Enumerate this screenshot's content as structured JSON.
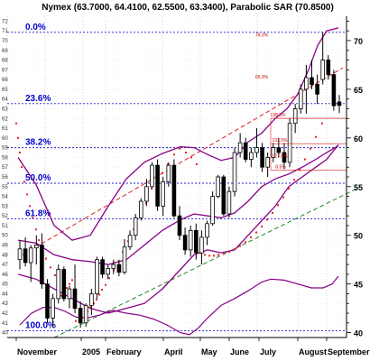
{
  "chart_data": {
    "type": "candlestick",
    "title": "Nymex (63.7000, 64.4100, 62.5500, 63.3400), Parabolic SAR (70.8500)",
    "y_axis": {
      "side": "right",
      "range": [
        39.5,
        72.5
      ],
      "major_ticks": [
        40,
        45,
        50,
        55,
        60,
        65,
        70
      ]
    },
    "x_axis": {
      "labels": [
        "November",
        "2005",
        "February",
        "April",
        "May",
        "June",
        "July",
        "August",
        "September"
      ]
    },
    "fibonacci_levels": [
      {
        "label": "0.0%",
        "price": 70.85
      },
      {
        "label": "23.6%",
        "price": 63.53
      },
      {
        "label": "38.2%",
        "price": 59.0
      },
      {
        "label": "50.0%",
        "price": 55.35
      },
      {
        "label": "61.8%",
        "price": 51.7
      },
      {
        "label": "100.0%",
        "price": 40.2
      }
    ],
    "annotations": [
      "78.3%",
      "65.3%",
      "138.3%",
      "132.5%",
      "127.8%",
      "8.5%"
    ],
    "candles": [
      {
        "o": 47.5,
        "h": 49.5,
        "l": 46.5,
        "c": 48.6
      },
      {
        "o": 48.6,
        "h": 49.8,
        "l": 46.8,
        "c": 47.2
      },
      {
        "o": 47.2,
        "h": 49.0,
        "l": 45.2,
        "c": 48.7
      },
      {
        "o": 48.7,
        "h": 50.0,
        "l": 47.0,
        "c": 49.0
      },
      {
        "o": 49.0,
        "h": 50.2,
        "l": 44.5,
        "c": 45.0
      },
      {
        "o": 45.0,
        "h": 45.5,
        "l": 41.0,
        "c": 41.5
      },
      {
        "o": 41.5,
        "h": 44.0,
        "l": 40.5,
        "c": 43.5
      },
      {
        "o": 43.5,
        "h": 47.0,
        "l": 43.0,
        "c": 46.5
      },
      {
        "o": 46.5,
        "h": 46.8,
        "l": 43.2,
        "c": 43.5
      },
      {
        "o": 43.5,
        "h": 44.8,
        "l": 42.5,
        "c": 44.5
      },
      {
        "o": 44.5,
        "h": 47.0,
        "l": 42.0,
        "c": 42.5
      },
      {
        "o": 42.5,
        "h": 43.2,
        "l": 40.5,
        "c": 41.0
      },
      {
        "o": 41.0,
        "h": 43.0,
        "l": 40.6,
        "c": 42.8
      },
      {
        "o": 42.8,
        "h": 44.5,
        "l": 41.8,
        "c": 44.0
      },
      {
        "o": 44.0,
        "h": 47.8,
        "l": 43.5,
        "c": 47.5
      },
      {
        "o": 47.5,
        "h": 47.8,
        "l": 45.6,
        "c": 46.0
      },
      {
        "o": 46.0,
        "h": 47.0,
        "l": 45.5,
        "c": 46.6
      },
      {
        "o": 46.6,
        "h": 47.5,
        "l": 46.0,
        "c": 47.0
      },
      {
        "o": 47.0,
        "h": 47.5,
        "l": 45.8,
        "c": 46.2
      },
      {
        "o": 46.2,
        "h": 49.6,
        "l": 46.0,
        "c": 48.8
      },
      {
        "o": 48.8,
        "h": 50.5,
        "l": 48.5,
        "c": 50.0
      },
      {
        "o": 50.0,
        "h": 52.2,
        "l": 49.5,
        "c": 51.8
      },
      {
        "o": 51.8,
        "h": 53.8,
        "l": 51.5,
        "c": 53.5
      },
      {
        "o": 53.5,
        "h": 55.8,
        "l": 53.0,
        "c": 55.0
      },
      {
        "o": 55.0,
        "h": 57.5,
        "l": 54.8,
        "c": 57.2
      },
      {
        "o": 57.2,
        "h": 57.8,
        "l": 52.5,
        "c": 53.0
      },
      {
        "o": 53.0,
        "h": 56.0,
        "l": 52.0,
        "c": 55.5
      },
      {
        "o": 55.5,
        "h": 57.5,
        "l": 55.0,
        "c": 57.2
      },
      {
        "o": 57.2,
        "h": 57.8,
        "l": 51.8,
        "c": 52.0
      },
      {
        "o": 52.0,
        "h": 53.0,
        "l": 49.5,
        "c": 50.0
      },
      {
        "o": 50.0,
        "h": 50.8,
        "l": 48.0,
        "c": 48.5
      },
      {
        "o": 48.5,
        "h": 51.0,
        "l": 47.8,
        "c": 50.5
      },
      {
        "o": 50.5,
        "h": 51.2,
        "l": 47.5,
        "c": 48.2
      },
      {
        "o": 48.2,
        "h": 50.5,
        "l": 47.0,
        "c": 49.8
      },
      {
        "o": 49.8,
        "h": 51.5,
        "l": 49.0,
        "c": 51.2
      },
      {
        "o": 51.2,
        "h": 54.5,
        "l": 51.0,
        "c": 54.0
      },
      {
        "o": 54.0,
        "h": 56.2,
        "l": 53.8,
        "c": 56.0
      },
      {
        "o": 56.0,
        "h": 56.2,
        "l": 52.0,
        "c": 52.2
      },
      {
        "o": 52.2,
        "h": 55.0,
        "l": 51.8,
        "c": 54.5
      },
      {
        "o": 54.5,
        "h": 59.0,
        "l": 54.0,
        "c": 58.5
      },
      {
        "o": 58.5,
        "h": 60.5,
        "l": 58.0,
        "c": 59.5
      },
      {
        "o": 59.5,
        "h": 60.0,
        "l": 57.5,
        "c": 57.8
      },
      {
        "o": 57.8,
        "h": 59.0,
        "l": 57.0,
        "c": 58.5
      },
      {
        "o": 58.5,
        "h": 61.0,
        "l": 58.0,
        "c": 59.0
      },
      {
        "o": 59.0,
        "h": 59.5,
        "l": 56.5,
        "c": 57.0
      },
      {
        "o": 57.0,
        "h": 58.5,
        "l": 56.0,
        "c": 58.0
      },
      {
        "o": 58.0,
        "h": 59.5,
        "l": 57.5,
        "c": 59.0
      },
      {
        "o": 59.0,
        "h": 60.0,
        "l": 58.0,
        "c": 58.5
      },
      {
        "o": 58.5,
        "h": 59.5,
        "l": 56.8,
        "c": 57.5
      },
      {
        "o": 57.5,
        "h": 62.0,
        "l": 57.0,
        "c": 61.5
      },
      {
        "o": 61.5,
        "h": 63.5,
        "l": 60.5,
        "c": 63.0
      },
      {
        "o": 63.0,
        "h": 65.5,
        "l": 62.5,
        "c": 65.0
      },
      {
        "o": 65.0,
        "h": 67.5,
        "l": 62.5,
        "c": 66.2
      },
      {
        "o": 66.2,
        "h": 68.0,
        "l": 65.0,
        "c": 65.5
      },
      {
        "o": 65.5,
        "h": 66.5,
        "l": 63.5,
        "c": 64.5
      },
      {
        "o": 66.0,
        "h": 70.85,
        "l": 65.5,
        "c": 68.0
      },
      {
        "o": 68.0,
        "h": 68.5,
        "l": 66.0,
        "c": 66.5
      },
      {
        "o": 66.5,
        "h": 67.0,
        "l": 62.8,
        "c": 63.3
      },
      {
        "o": 63.7,
        "h": 64.41,
        "l": 62.55,
        "c": 63.34
      }
    ],
    "parabolic_sar": [
      [
        18,
        61.5
      ],
      [
        20,
        60.0
      ],
      [
        22,
        58.5
      ],
      [
        24,
        57.0
      ],
      [
        27,
        55.5
      ],
      [
        30,
        54.2
      ],
      [
        33,
        53.0
      ],
      [
        36,
        51.8
      ],
      [
        40,
        50.6
      ],
      [
        43,
        49.5
      ],
      [
        47,
        48.5
      ],
      [
        51,
        47.6
      ],
      [
        56,
        46.7
      ],
      [
        61,
        45.9
      ],
      [
        68,
        43.8
      ],
      [
        71,
        44.2
      ],
      [
        74,
        44.6
      ],
      [
        77,
        45.0
      ],
      [
        80,
        45.4
      ],
      [
        84,
        41.2
      ],
      [
        88,
        41.4
      ],
      [
        91,
        41.6
      ],
      [
        94,
        41.9
      ],
      [
        97,
        42.2
      ],
      [
        100,
        42.6
      ],
      [
        104,
        43.0
      ],
      [
        107,
        43.4
      ],
      [
        110,
        43.9
      ],
      [
        113,
        44.4
      ],
      [
        117,
        44.9
      ],
      [
        121,
        45.6
      ],
      [
        126,
        46.4
      ],
      [
        131,
        47.3
      ],
      [
        136,
        48.3
      ],
      [
        142,
        49.4
      ],
      [
        148,
        50.6
      ],
      [
        155,
        51.9
      ],
      [
        162,
        53.3
      ],
      [
        168,
        54.8
      ],
      [
        175,
        55.6
      ],
      [
        180,
        56.4
      ],
      [
        186,
        57.3
      ],
      [
        193,
        58.3
      ],
      [
        199,
        58.9
      ],
      [
        206,
        58.5
      ],
      [
        212,
        58.0
      ],
      [
        218,
        57.3
      ],
      [
        222,
        48.2
      ],
      [
        227,
        48.0
      ],
      [
        232,
        47.9
      ],
      [
        237,
        47.9
      ],
      [
        242,
        48.0
      ],
      [
        248,
        48.1
      ],
      [
        254,
        48.3
      ],
      [
        260,
        48.6
      ],
      [
        266,
        48.9
      ],
      [
        272,
        49.3
      ],
      [
        278,
        49.8
      ],
      [
        284,
        50.3
      ],
      [
        290,
        50.9
      ],
      [
        296,
        51.6
      ],
      [
        302,
        52.3
      ],
      [
        308,
        53.1
      ],
      [
        314,
        53.9
      ],
      [
        320,
        54.8
      ],
      [
        326,
        55.7
      ],
      [
        332,
        56.7
      ],
      [
        338,
        57.8
      ],
      [
        344,
        58.9
      ],
      [
        350,
        60.1
      ],
      [
        357,
        61.5
      ]
    ],
    "bollinger_upper": [
      [
        20,
        58.0
      ],
      [
        40,
        55.2
      ],
      [
        60,
        51.0
      ],
      [
        80,
        49.5
      ],
      [
        100,
        50.0
      ],
      [
        120,
        53.0
      ],
      [
        140,
        55.8
      ],
      [
        160,
        57.5
      ],
      [
        180,
        58.4
      ],
      [
        200,
        59.1
      ],
      [
        215,
        59.0
      ],
      [
        230,
        58.3
      ],
      [
        245,
        57.7
      ],
      [
        260,
        58.0
      ],
      [
        275,
        59.6
      ],
      [
        290,
        60.5
      ],
      [
        305,
        62.0
      ],
      [
        318,
        63.0
      ],
      [
        330,
        64.5
      ],
      [
        342,
        67.0
      ],
      [
        352,
        69.5
      ],
      [
        362,
        71.0
      ],
      [
        375,
        71.3
      ]
    ],
    "bollinger_middle": [
      [
        20,
        49.5
      ],
      [
        40,
        49.2
      ],
      [
        60,
        48.0
      ],
      [
        80,
        47.5
      ],
      [
        100,
        47.3
      ],
      [
        120,
        47.0
      ],
      [
        140,
        47.5
      ],
      [
        160,
        49.0
      ],
      [
        180,
        50.5
      ],
      [
        200,
        51.6
      ],
      [
        215,
        52.2
      ],
      [
        230,
        52.0
      ],
      [
        245,
        51.8
      ],
      [
        260,
        52.3
      ],
      [
        275,
        53.5
      ],
      [
        290,
        55.0
      ],
      [
        305,
        55.8
      ],
      [
        320,
        56.3
      ],
      [
        335,
        57.0
      ],
      [
        350,
        57.8
      ],
      [
        362,
        58.5
      ],
      [
        375,
        59.2
      ]
    ],
    "bollinger_lower": [
      [
        20,
        46.0
      ],
      [
        40,
        45.5
      ],
      [
        60,
        44.5
      ],
      [
        80,
        43.5
      ],
      [
        100,
        42.5
      ],
      [
        120,
        42.0
      ],
      [
        140,
        42.5
      ],
      [
        160,
        43.0
      ],
      [
        180,
        44.5
      ],
      [
        200,
        46.5
      ],
      [
        215,
        48.0
      ],
      [
        230,
        48.5
      ],
      [
        245,
        48.2
      ],
      [
        260,
        48.5
      ],
      [
        275,
        50.0
      ],
      [
        290,
        51.5
      ],
      [
        305,
        53.0
      ],
      [
        320,
        55.0
      ],
      [
        335,
        56.0
      ],
      [
        350,
        57.0
      ],
      [
        362,
        57.8
      ],
      [
        375,
        59.3
      ]
    ],
    "oscillator": [
      [
        22,
        40.8
      ],
      [
        35,
        42.0
      ],
      [
        48,
        42.6
      ],
      [
        60,
        42.6
      ],
      [
        72,
        42.2
      ],
      [
        84,
        41.6
      ],
      [
        96,
        41.5
      ],
      [
        110,
        41.8
      ],
      [
        125,
        42.3
      ],
      [
        140,
        42.0
      ],
      [
        155,
        41.8
      ],
      [
        170,
        41.4
      ],
      [
        185,
        40.8
      ],
      [
        200,
        40.0
      ],
      [
        210,
        39.8
      ],
      [
        220,
        40.5
      ],
      [
        230,
        41.5
      ],
      [
        245,
        42.8
      ],
      [
        260,
        43.5
      ],
      [
        275,
        44.3
      ],
      [
        290,
        45.2
      ],
      [
        300,
        45.5
      ],
      [
        315,
        45.4
      ],
      [
        330,
        45.0
      ],
      [
        345,
        44.6
      ],
      [
        358,
        44.6
      ],
      [
        368,
        45.0
      ],
      [
        375,
        45.8
      ]
    ],
    "trendlines": [
      {
        "style": "dashed",
        "color": "#dd2222",
        "from": [
          25,
          48.0
        ],
        "to": [
          380,
          67.2
        ]
      },
      {
        "style": "dashed",
        "color": "#228822",
        "from": [
          60,
          39.5
        ],
        "to": [
          400,
          55.0
        ]
      }
    ]
  }
}
